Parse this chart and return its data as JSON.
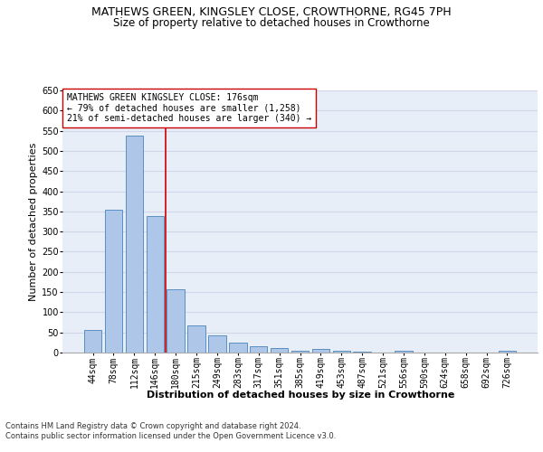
{
  "title": "MATHEWS GREEN, KINGSLEY CLOSE, CROWTHORNE, RG45 7PH",
  "subtitle": "Size of property relative to detached houses in Crowthorne",
  "xlabel": "Distribution of detached houses by size in Crowthorne",
  "ylabel": "Number of detached properties",
  "categories": [
    "44sqm",
    "78sqm",
    "112sqm",
    "146sqm",
    "180sqm",
    "215sqm",
    "249sqm",
    "283sqm",
    "317sqm",
    "351sqm",
    "385sqm",
    "419sqm",
    "453sqm",
    "487sqm",
    "521sqm",
    "556sqm",
    "590sqm",
    "624sqm",
    "658sqm",
    "692sqm",
    "726sqm"
  ],
  "values": [
    57,
    355,
    538,
    338,
    157,
    68,
    42,
    25,
    15,
    11,
    5,
    10,
    5,
    2,
    0,
    5,
    0,
    0,
    0,
    0,
    5
  ],
  "bar_color": "#aec6e8",
  "bar_edge_color": "#5a8fc0",
  "vline_x_index": 3.5,
  "vline_color": "#cc0000",
  "annotation_text": "MATHEWS GREEN KINGSLEY CLOSE: 176sqm\n← 79% of detached houses are smaller (1,258)\n21% of semi-detached houses are larger (340) →",
  "annotation_box_color": "#ffffff",
  "annotation_box_edge_color": "#cc0000",
  "ylim": [
    0,
    650
  ],
  "yticks": [
    0,
    50,
    100,
    150,
    200,
    250,
    300,
    350,
    400,
    450,
    500,
    550,
    600,
    650
  ],
  "grid_color": "#d0d8e8",
  "background_color": "#e8eef8",
  "footer_text": "Contains HM Land Registry data © Crown copyright and database right 2024.\nContains public sector information licensed under the Open Government Licence v3.0.",
  "title_fontsize": 9,
  "subtitle_fontsize": 8.5,
  "xlabel_fontsize": 8,
  "ylabel_fontsize": 8,
  "tick_fontsize": 7,
  "annotation_fontsize": 7,
  "footer_fontsize": 6
}
